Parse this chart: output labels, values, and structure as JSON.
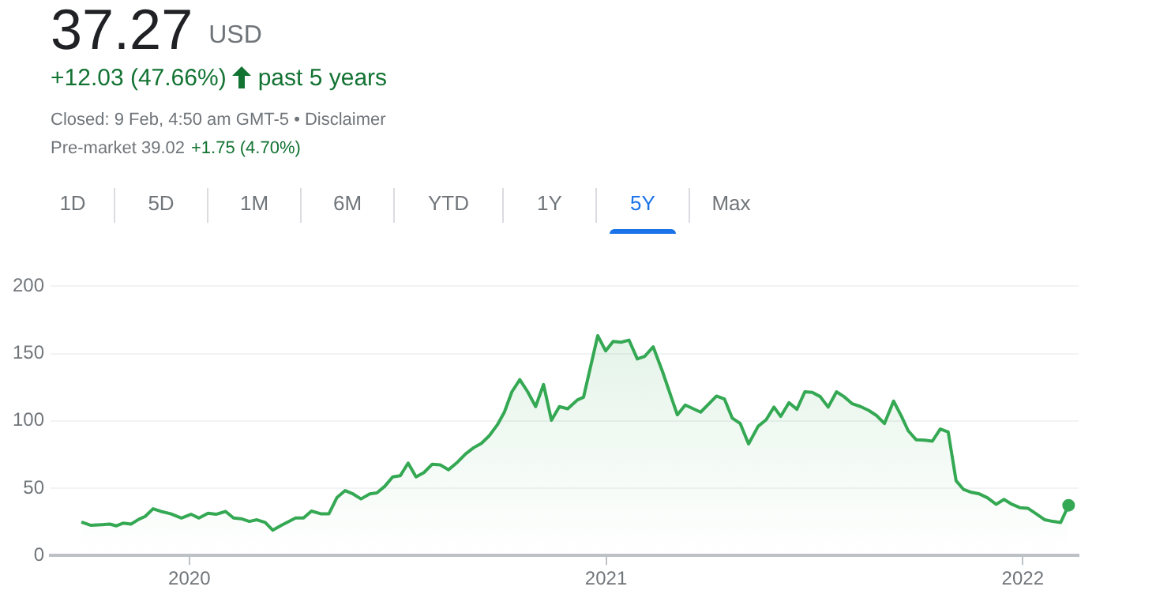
{
  "chart_data": {
    "type": "area",
    "title": "37.27",
    "annotations": [
      "USD",
      "+12.03 (47.66%)",
      "past 5 years",
      "Closed: 9 Feb, 4:50 am GMT-5 • Disclaimer",
      "Pre-market 39.02",
      "+1.75 (4.70%)",
      "1D",
      "5D",
      "1M",
      "6M",
      "YTD",
      "1Y",
      "5Y",
      "Max"
    ],
    "x": [
      2019.741,
      2019.764,
      2019.79,
      2019.809,
      2019.825,
      2019.841,
      2019.86,
      2019.879,
      2019.894,
      2019.913,
      2019.932,
      2019.955,
      2019.981,
      2020.004,
      2020.023,
      2020.045,
      2020.064,
      2020.087,
      2020.106,
      2020.124,
      2020.144,
      2020.162,
      2020.182,
      2020.2,
      2020.221,
      2020.255,
      2020.274,
      2020.293,
      2020.315,
      2020.335,
      2020.354,
      2020.374,
      2020.391,
      2020.412,
      2020.433,
      2020.45,
      2020.469,
      2020.488,
      2020.506,
      2020.525,
      2020.544,
      2020.563,
      2020.583,
      2020.602,
      2020.622,
      2020.641,
      2020.663,
      2020.682,
      2020.701,
      2020.72,
      2020.739,
      2020.756,
      2020.774,
      2020.793,
      2020.812,
      2020.831,
      2020.85,
      2020.869,
      2020.888,
      2020.908,
      2020.931,
      2020.946,
      2020.98,
      2020.999,
      2021.017,
      2021.036,
      2021.055,
      2021.075,
      2021.093,
      2021.113,
      2021.135,
      2021.171,
      2021.19,
      2021.227,
      2021.265,
      2021.284,
      2021.303,
      2021.322,
      2021.342,
      2021.365,
      2021.384,
      2021.403,
      2021.419,
      2021.439,
      2021.458,
      2021.477,
      2021.495,
      2021.514,
      2021.533,
      2021.553,
      2021.571,
      2021.591,
      2021.611,
      2021.63,
      2021.649,
      2021.668,
      2021.69,
      2021.709,
      2021.725,
      2021.744,
      2021.764,
      2021.783,
      2021.802,
      2021.821,
      2021.84,
      2021.858,
      2021.877,
      2021.896,
      2021.915,
      2021.936,
      2021.955,
      2021.974,
      2021.993,
      2022.012,
      2022.034,
      2022.053,
      2022.072,
      2022.091,
      2022.11
    ],
    "values": [
      24.9,
      22.4,
      22.9,
      23.3,
      22,
      24,
      23.3,
      26.9,
      29,
      34.7,
      32.7,
      31,
      27.8,
      30.6,
      27.8,
      31.4,
      30.6,
      32.7,
      27.8,
      27.3,
      25.3,
      26.5,
      24.5,
      18.8,
      22.4,
      27.8,
      27.8,
      33,
      31,
      31,
      42.9,
      48.2,
      46,
      42,
      45.7,
      46.5,
      51.4,
      58.4,
      59.2,
      68.6,
      58.4,
      61.6,
      67.8,
      67.3,
      63.7,
      68.6,
      75.5,
      80,
      83.3,
      89,
      97,
      106.5,
      121.6,
      130.6,
      121.6,
      110.6,
      127,
      100.4,
      110.6,
      109,
      115.5,
      117.6,
      163.3,
      152,
      159,
      158.4,
      160,
      146,
      148,
      155,
      137,
      104.5,
      111.8,
      106.5,
      118.4,
      116.3,
      102,
      98,
      82.9,
      96,
      100.8,
      110.2,
      103.3,
      113.5,
      108.6,
      121.6,
      121.2,
      118,
      110.2,
      121.6,
      118,
      112.7,
      110.6,
      107.8,
      104,
      98,
      114.7,
      103.3,
      92.7,
      86,
      85.7,
      84.9,
      93.9,
      91.8,
      55.5,
      49,
      46.9,
      45.7,
      42.9,
      38,
      41.6,
      38,
      35.5,
      35.1,
      30.6,
      26.5,
      25.3,
      24.5,
      37.27
    ],
    "color": "#34a853",
    "xlim": [
      2019.667,
      2022.134
    ],
    "xticks": [
      2020,
      2021,
      2022
    ],
    "ylim": [
      0,
      200
    ],
    "yticks": [
      0,
      50,
      100,
      150,
      200
    ],
    "grid": "y",
    "legend": false
  }
}
